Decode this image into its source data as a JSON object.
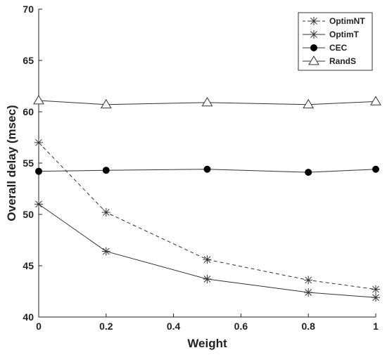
{
  "chart_data": {
    "type": "line",
    "xlabel": "Weight",
    "ylabel": "Overall delay (msec)",
    "xlim": [
      0,
      1
    ],
    "ylim": [
      40,
      70
    ],
    "xticks": [
      0,
      0.2,
      0.4,
      0.6,
      0.8,
      1
    ],
    "xtick_labels": [
      "0",
      "0.2",
      "0.4",
      "0.6",
      "0.8",
      "1"
    ],
    "yticks": [
      40,
      45,
      50,
      55,
      60,
      65,
      70
    ],
    "ytick_labels": [
      "40",
      "45",
      "50",
      "55",
      "60",
      "65",
      "70"
    ],
    "grid": false,
    "legend_position": "top-right",
    "x": [
      0,
      0.2,
      0.5,
      0.8,
      1
    ],
    "series": [
      {
        "name": "OptimNT",
        "values": [
          57.0,
          50.2,
          45.6,
          43.6,
          42.7
        ],
        "line": "dashed",
        "marker": "asterisk"
      },
      {
        "name": "OptimT",
        "values": [
          51.0,
          46.4,
          43.7,
          42.4,
          41.9
        ],
        "line": "solid",
        "marker": "asterisk"
      },
      {
        "name": "CEC",
        "values": [
          54.2,
          54.3,
          54.4,
          54.1,
          54.4
        ],
        "line": "solid",
        "marker": "filled-circle"
      },
      {
        "name": "RandS",
        "values": [
          61.1,
          60.7,
          60.9,
          60.7,
          61.0
        ],
        "line": "solid",
        "marker": "open-triangle"
      }
    ],
    "colors": {
      "line": "#333333",
      "axis": "#222222",
      "marker_fill": "#000000"
    }
  }
}
